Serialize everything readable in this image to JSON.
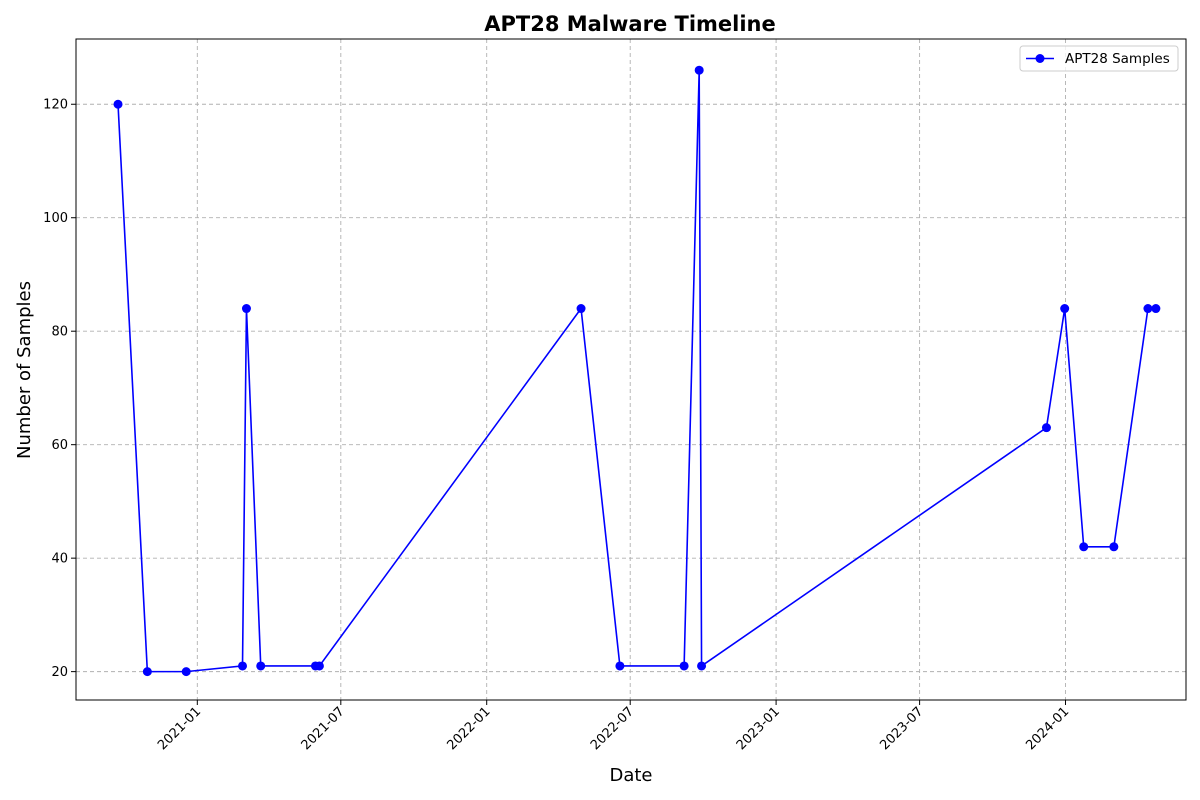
{
  "chart_data": {
    "type": "line",
    "title": "APT28 Malware Timeline",
    "xlabel": "Date",
    "ylabel": "Number of Samples",
    "x_type": "date",
    "xlim": [
      "2020-08-01",
      "2024-06-01"
    ],
    "ylim": [
      15,
      131.5
    ],
    "x_ticks": [
      "2021-01-01",
      "2021-07-01",
      "2022-01-01",
      "2022-07-01",
      "2023-01-01",
      "2023-07-01",
      "2024-01-01"
    ],
    "x_tick_labels": [
      "2021-01",
      "2021-07",
      "2022-01",
      "2022-07",
      "2023-01",
      "2023-07",
      "2024-01"
    ],
    "y_ticks": [
      20,
      40,
      60,
      80,
      100,
      120
    ],
    "grid": true,
    "legend_position": "top-right",
    "series": [
      {
        "name": "APT28 Samples",
        "color": "#0000ff",
        "marker": "circle",
        "x": [
          "2020-09-23",
          "2020-10-30",
          "2020-12-18",
          "2021-02-27",
          "2021-03-04",
          "2021-03-22",
          "2021-05-30",
          "2021-06-04",
          "2022-04-30",
          "2022-06-18",
          "2022-09-07",
          "2022-09-26",
          "2022-09-29",
          "2023-12-08",
          "2023-12-31",
          "2024-01-24",
          "2024-03-02",
          "2024-04-14",
          "2024-04-24"
        ],
        "y": [
          120,
          20,
          20,
          21,
          84,
          21,
          21,
          21,
          84,
          21,
          21,
          126,
          21,
          63,
          84,
          42,
          42,
          84,
          84
        ]
      }
    ]
  }
}
